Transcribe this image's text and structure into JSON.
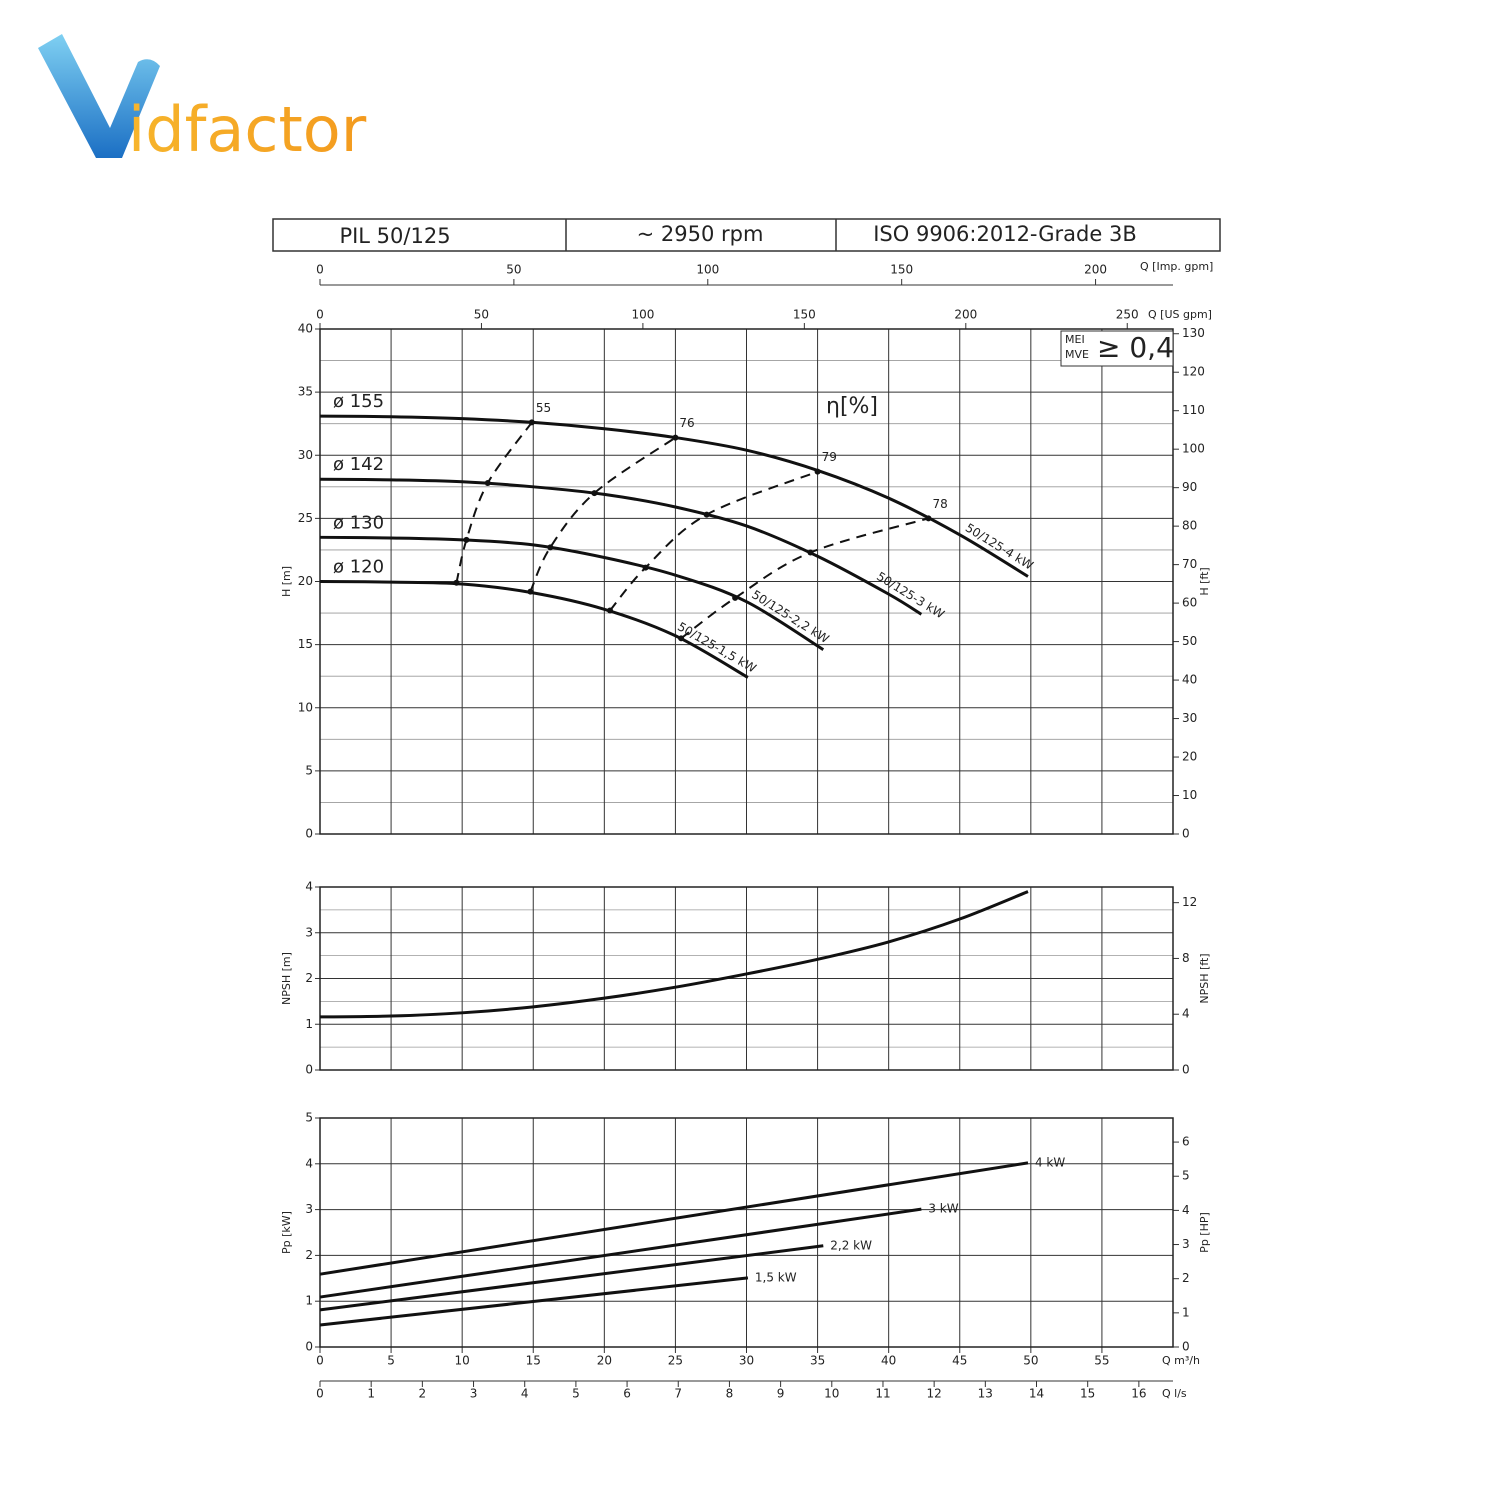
{
  "logo": "idfactor",
  "header": [
    "PIL 50/125",
    "~ 2950 rpm",
    "ISO 9906:2012-Grade 3B"
  ],
  "q_axes": {
    "imp": {
      "label": "Q [Imp. gpm]",
      "lim": [
        0,
        219.97
      ],
      "ticks": [
        0,
        50,
        100,
        150,
        200
      ]
    },
    "us": {
      "label": "Q [US gpm]",
      "lim": [
        0,
        264.17
      ],
      "ticks": [
        0,
        50,
        100,
        150,
        200,
        250
      ]
    },
    "m3h": {
      "label": "Q m³/h",
      "lim": [
        0,
        60
      ],
      "ticks": [
        0,
        5,
        10,
        15,
        20,
        25,
        30,
        35,
        40,
        45,
        50,
        55
      ]
    },
    "ls": {
      "label": "Q l/s",
      "lim": [
        0,
        16.667
      ],
      "ticks": [
        0,
        1,
        2,
        3,
        4,
        5,
        6,
        7,
        8,
        9,
        10,
        11,
        12,
        13,
        14,
        15,
        16
      ]
    }
  },
  "chart_data": [
    {
      "type": "line",
      "ylabel": "H [m]",
      "ylim": [
        0,
        40
      ],
      "yticks": [
        0,
        5,
        10,
        15,
        20,
        25,
        30,
        35,
        40
      ],
      "yminor": [
        2.5,
        7.5,
        12.5,
        17.5,
        22.5,
        27.5,
        32.5,
        37.5
      ],
      "y2label": "H [ft]",
      "y2lim": [
        0,
        131.23
      ],
      "y2ticks": [
        0,
        10,
        20,
        30,
        40,
        50,
        60,
        70,
        80,
        90,
        100,
        110,
        120,
        130
      ],
      "label_position": "start",
      "series": [
        {
          "name": "ø 155",
          "color": "#111111",
          "end_label": "50/125-4 kW",
          "x": [
            0,
            5,
            10,
            15,
            20,
            25,
            30,
            35,
            40,
            45,
            49.8
          ],
          "values": [
            33.1,
            33.05,
            32.9,
            32.6,
            32.1,
            31.4,
            30.4,
            28.8,
            26.6,
            23.7,
            20.4
          ]
        },
        {
          "name": "ø 142",
          "color": "#111111",
          "end_label": "50/125-3 kW",
          "x": [
            0,
            5,
            10,
            15,
            20,
            25,
            30,
            35,
            40,
            42.3
          ],
          "values": [
            28.1,
            28.05,
            27.9,
            27.5,
            26.9,
            25.9,
            24.4,
            22.0,
            19.0,
            17.4
          ]
        },
        {
          "name": "ø 130",
          "color": "#111111",
          "end_label": "50/125-2,2 kW",
          "x": [
            0,
            5,
            10,
            15,
            20,
            25,
            30,
            35.4
          ],
          "values": [
            23.5,
            23.45,
            23.3,
            22.9,
            21.9,
            20.5,
            18.4,
            14.6
          ]
        },
        {
          "name": "ø 120",
          "color": "#111111",
          "end_label": "50/125-1,5 kW",
          "x": [
            0,
            5,
            10,
            15,
            20,
            25,
            30.1
          ],
          "values": [
            20.0,
            19.95,
            19.8,
            19.1,
            17.8,
            15.7,
            12.4
          ]
        }
      ],
      "efficiency": {
        "label": "η[%]",
        "series": [
          {
            "name": "55",
            "x": [
              9.6,
              10.3,
              11.8,
              14.9
            ],
            "values": [
              19.9,
              23.3,
              27.8,
              32.6
            ]
          },
          {
            "name": "76",
            "x": [
              14.8,
              16.2,
              19.3,
              25.0
            ],
            "values": [
              19.2,
              22.7,
              27.0,
              31.4
            ]
          },
          {
            "name": "79",
            "x": [
              20.4,
              22.9,
              27.2,
              35.0
            ],
            "values": [
              17.7,
              21.1,
              25.3,
              28.7
            ]
          },
          {
            "name": "78",
            "x": [
              25.4,
              29.2,
              34.5,
              42.8
            ],
            "values": [
              15.5,
              18.7,
              22.3,
              25.0
            ]
          }
        ]
      },
      "badge": {
        "lines": [
          "MEI",
          "MVE"
        ],
        "text": "≥ 0,4"
      }
    },
    {
      "type": "line",
      "ylabel": "NPSH [m]",
      "ylim": [
        0,
        4
      ],
      "yticks": [
        0,
        1,
        2,
        3,
        4
      ],
      "yminor": [
        0.5,
        1.5,
        2.5,
        3.5
      ],
      "y2label": "NPSH [ft]",
      "y2lim": [
        0,
        13.123
      ],
      "y2ticks": [
        0,
        4,
        8,
        12
      ],
      "series": [
        {
          "color": "#111111",
          "x": [
            0,
            5,
            10,
            15,
            20,
            25,
            30,
            35,
            40,
            45,
            49.8
          ],
          "values": [
            1.16,
            1.18,
            1.25,
            1.38,
            1.57,
            1.81,
            2.1,
            2.42,
            2.8,
            3.3,
            3.9
          ]
        }
      ]
    },
    {
      "type": "line",
      "ylabel": "Pp [kW]",
      "ylim": [
        0,
        5
      ],
      "yticks": [
        0,
        1,
        2,
        3,
        4,
        5
      ],
      "y2label": "Pp [HP]",
      "y2lim": [
        0,
        6.705
      ],
      "y2ticks": [
        0,
        1,
        2,
        3,
        4,
        5,
        6
      ],
      "label_position": "end",
      "series": [
        {
          "name": "4 kW",
          "color": "#111111",
          "x": [
            0,
            49.8
          ],
          "values": [
            1.59,
            4.02
          ]
        },
        {
          "name": "3 kW",
          "color": "#111111",
          "x": [
            0,
            42.3
          ],
          "values": [
            1.09,
            3.01
          ]
        },
        {
          "name": "2,2 kW",
          "color": "#111111",
          "x": [
            0,
            35.4
          ],
          "values": [
            0.81,
            2.21
          ]
        },
        {
          "name": "1,5 kW",
          "color": "#111111",
          "x": [
            0,
            30.1
          ],
          "values": [
            0.48,
            1.51
          ]
        }
      ]
    }
  ]
}
